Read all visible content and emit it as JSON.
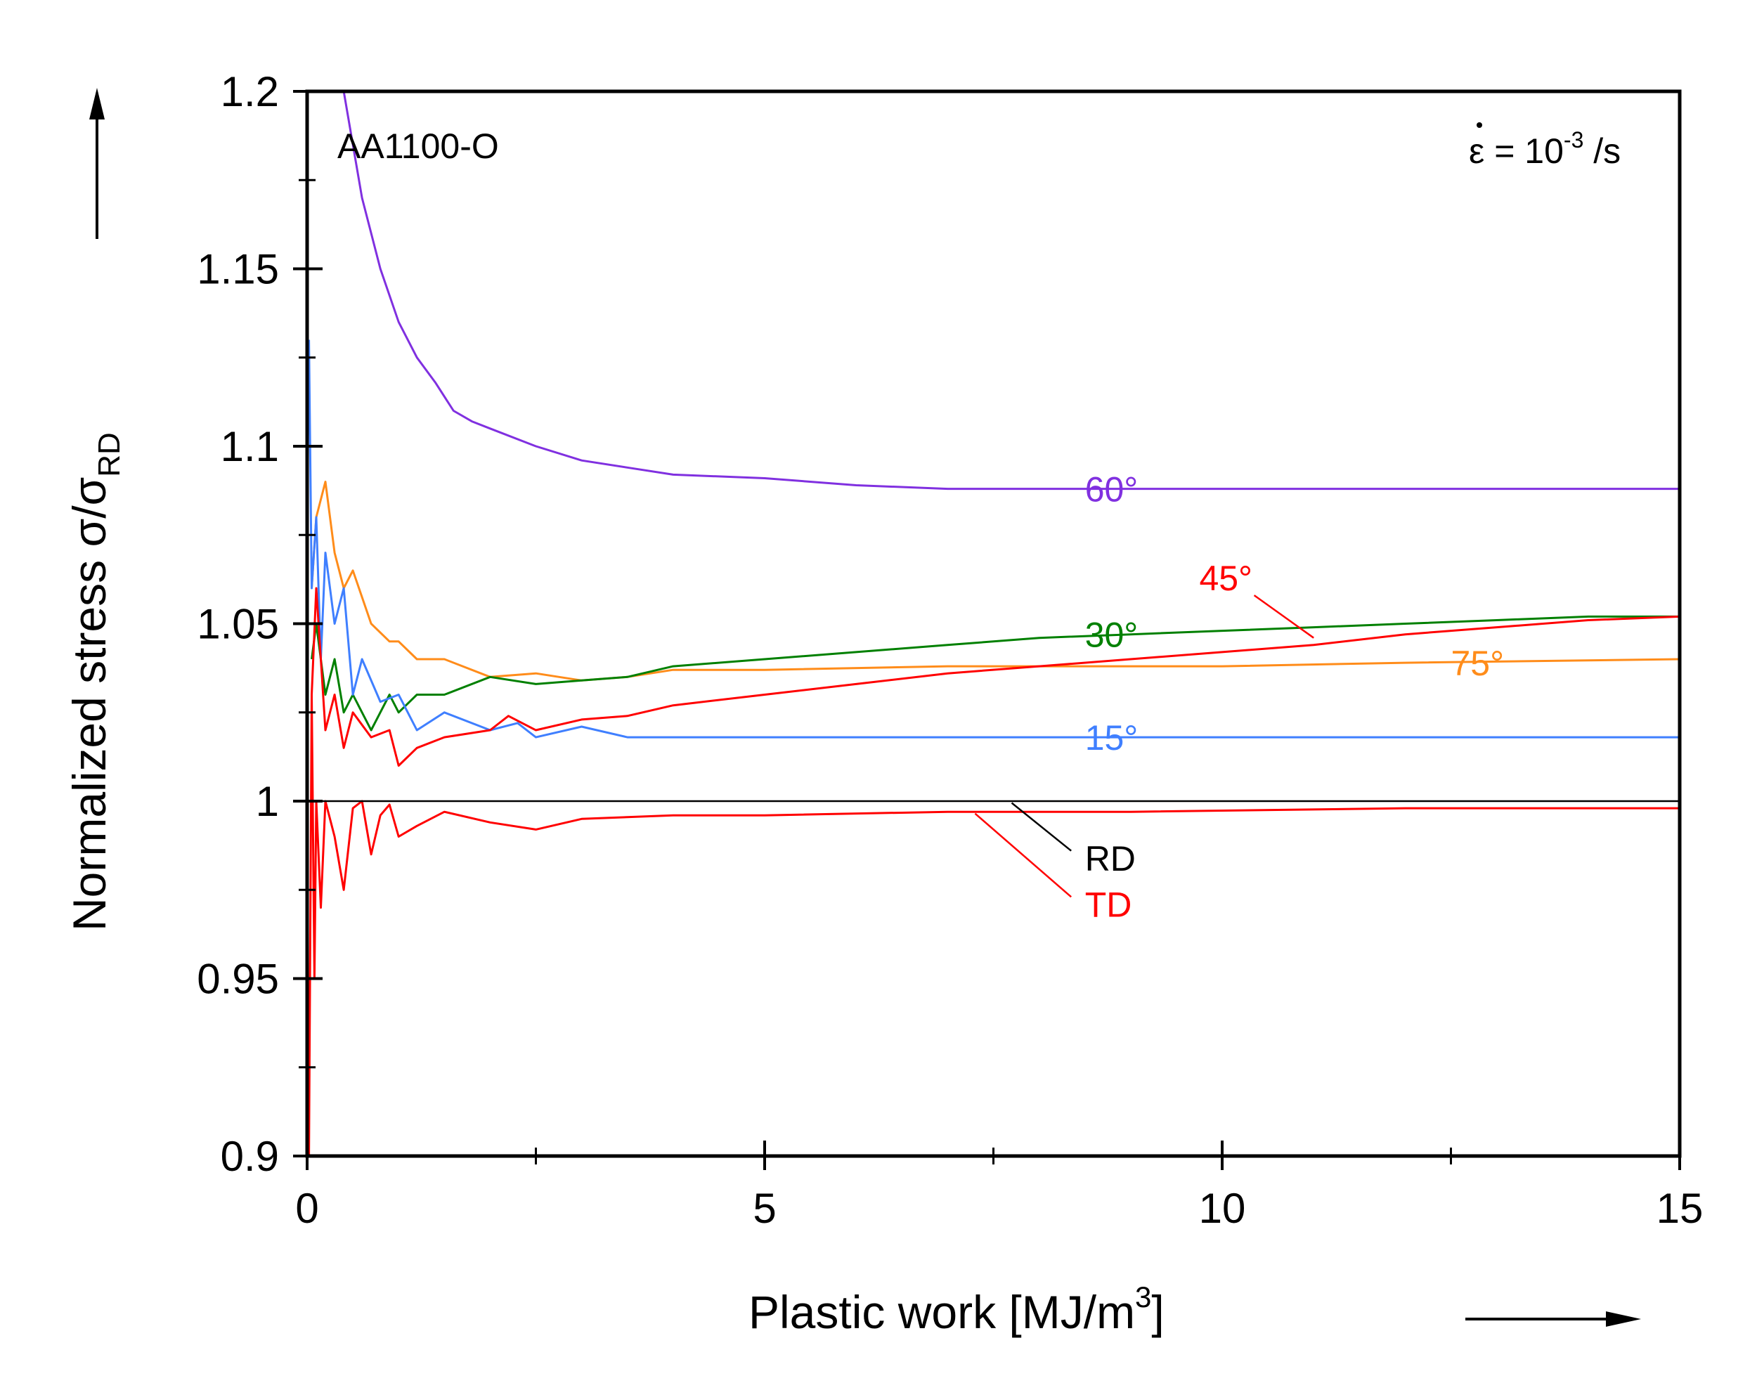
{
  "chart_data": {
    "type": "line",
    "title": "",
    "material_label": "AA1100-O",
    "strain_rate": {
      "symbol": "ε",
      "eq": " = 10",
      "exp": "-3",
      "unit": " /s"
    },
    "xlabel": {
      "main": "Plastic work [MJ/m",
      "sup": "3",
      "close": "]"
    },
    "ylabel": {
      "main": "Normalized stress σ/σ",
      "sub": "RD"
    },
    "xlim": [
      0,
      15
    ],
    "ylim": [
      0.9,
      1.2
    ],
    "x_ticks": [
      0,
      5,
      10,
      15
    ],
    "x_tick_labels": [
      "0",
      "5",
      "10",
      "15"
    ],
    "y_ticks": [
      0.9,
      0.95,
      1.0,
      1.05,
      1.1,
      1.15,
      1.2
    ],
    "y_tick_labels": [
      "0.9",
      "0.95",
      "1",
      "1.05",
      "1.1",
      "1.15",
      "1.2"
    ],
    "series": [
      {
        "name": "RD",
        "label": "RD",
        "color": "#000000",
        "x": [
          0.05,
          15
        ],
        "y": [
          1.0,
          1.0
        ]
      },
      {
        "name": "TD",
        "label": "TD",
        "color": "#ff0000",
        "x": [
          0.02,
          0.05,
          0.08,
          0.1,
          0.15,
          0.2,
          0.3,
          0.4,
          0.5,
          0.6,
          0.7,
          0.8,
          0.9,
          1.0,
          1.2,
          1.5,
          2.0,
          2.5,
          3.0,
          4.0,
          5.0,
          7.0,
          9.0,
          12.0,
          15.0
        ],
        "y": [
          0.9,
          1.03,
          0.95,
          1.0,
          0.97,
          1.0,
          0.99,
          0.975,
          0.998,
          1.0,
          0.985,
          0.996,
          0.999,
          0.99,
          0.993,
          0.997,
          0.994,
          0.992,
          0.995,
          0.996,
          0.996,
          0.997,
          0.997,
          0.998,
          0.998
        ]
      },
      {
        "name": "15°",
        "label": "15°",
        "color": "#3f7fff",
        "x": [
          0.02,
          0.05,
          0.1,
          0.15,
          0.2,
          0.3,
          0.4,
          0.5,
          0.6,
          0.8,
          1.0,
          1.2,
          1.5,
          2.0,
          2.3,
          2.5,
          3.0,
          3.5,
          4.0,
          5.0,
          7.0,
          10.0,
          12.0,
          15.0
        ],
        "y": [
          1.13,
          1.06,
          1.08,
          1.04,
          1.07,
          1.05,
          1.06,
          1.03,
          1.04,
          1.028,
          1.03,
          1.02,
          1.025,
          1.02,
          1.022,
          1.018,
          1.021,
          1.018,
          1.018,
          1.018,
          1.018,
          1.018,
          1.018,
          1.018
        ]
      },
      {
        "name": "30°",
        "label": "30°",
        "color": "#008000",
        "x": [
          0.05,
          0.1,
          0.2,
          0.3,
          0.4,
          0.5,
          0.7,
          0.9,
          1.0,
          1.2,
          1.5,
          2.0,
          2.5,
          3.0,
          3.5,
          4.0,
          5.0,
          6.0,
          7.0,
          8.0,
          9.0,
          10.0,
          11.0,
          12.0,
          13.0,
          14.0,
          15.0
        ],
        "y": [
          1.04,
          1.05,
          1.03,
          1.04,
          1.025,
          1.03,
          1.02,
          1.03,
          1.025,
          1.03,
          1.03,
          1.035,
          1.033,
          1.034,
          1.035,
          1.038,
          1.04,
          1.042,
          1.044,
          1.046,
          1.047,
          1.048,
          1.049,
          1.05,
          1.051,
          1.052,
          1.052
        ]
      },
      {
        "name": "45°",
        "label": "45°",
        "color": "#ff0000",
        "x": [
          0.05,
          0.1,
          0.2,
          0.3,
          0.4,
          0.5,
          0.7,
          0.9,
          1.0,
          1.2,
          1.5,
          2.0,
          2.2,
          2.5,
          3.0,
          3.5,
          4.0,
          5.0,
          6.0,
          7.0,
          8.0,
          9.0,
          10.0,
          11.0,
          12.0,
          13.0,
          14.0,
          15.0
        ],
        "y": [
          1.03,
          1.06,
          1.02,
          1.03,
          1.015,
          1.025,
          1.018,
          1.02,
          1.01,
          1.015,
          1.018,
          1.02,
          1.024,
          1.02,
          1.023,
          1.024,
          1.027,
          1.03,
          1.033,
          1.036,
          1.038,
          1.04,
          1.042,
          1.044,
          1.047,
          1.049,
          1.051,
          1.052
        ]
      },
      {
        "name": "60°",
        "label": "60°",
        "color": "#8030e0",
        "x": [
          0.4,
          0.6,
          0.8,
          1.0,
          1.2,
          1.4,
          1.6,
          1.8,
          2.0,
          2.5,
          3.0,
          3.5,
          4.0,
          5.0,
          6.0,
          7.0,
          8.0,
          10.0,
          12.0,
          15.0
        ],
        "y": [
          1.2,
          1.17,
          1.15,
          1.135,
          1.125,
          1.118,
          1.11,
          1.107,
          1.105,
          1.1,
          1.096,
          1.094,
          1.092,
          1.091,
          1.089,
          1.088,
          1.088,
          1.088,
          1.088,
          1.088
        ]
      },
      {
        "name": "75°",
        "label": "75°",
        "color": "#ff8c1a",
        "x": [
          0.05,
          0.1,
          0.2,
          0.3,
          0.4,
          0.5,
          0.7,
          0.9,
          1.0,
          1.2,
          1.5,
          2.0,
          2.5,
          3.0,
          3.5,
          4.0,
          5.0,
          7.0,
          10.0,
          12.0,
          15.0
        ],
        "y": [
          1.06,
          1.08,
          1.09,
          1.07,
          1.06,
          1.065,
          1.05,
          1.045,
          1.045,
          1.04,
          1.04,
          1.035,
          1.036,
          1.034,
          1.035,
          1.037,
          1.037,
          1.038,
          1.038,
          1.039,
          1.04
        ]
      }
    ]
  }
}
